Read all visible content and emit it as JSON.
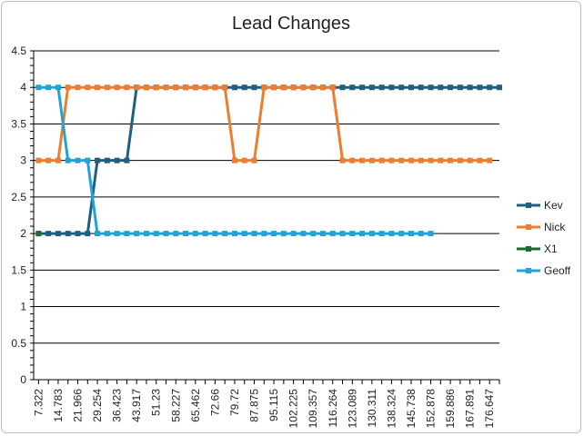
{
  "chart_data": {
    "type": "line",
    "title": "Lead Changes",
    "xlabel": "",
    "ylabel": "",
    "ylim": [
      0,
      4.5
    ],
    "yticks": [
      "0",
      "0.5",
      "1",
      "1.5",
      "2",
      "2.5",
      "3",
      "3.5",
      "4",
      "4.5"
    ],
    "grid": "horizontal",
    "legend_position": "right",
    "x_tick_labels": [
      "7.322",
      "14.783",
      "21.966",
      "29.254",
      "36.423",
      "43.917",
      "51.23",
      "58.227",
      "65.462",
      "72.66",
      "79.72",
      "87.875",
      "95.115",
      "102.225",
      "109.357",
      "116.264",
      "123.089",
      "130.311",
      "138.324",
      "145.738",
      "152.878",
      "159.886",
      "167.891",
      "176.647"
    ],
    "num_points": 48,
    "series": [
      {
        "name": "Kev",
        "color": "#1f5f7f",
        "values": [
          2,
          2,
          2,
          2,
          2,
          2,
          3,
          3,
          3,
          3,
          4,
          4,
          4,
          4,
          4,
          4,
          4,
          4,
          4,
          4,
          4,
          4,
          4,
          4,
          4,
          4,
          4,
          4,
          4,
          4,
          4,
          4,
          4,
          4,
          4,
          4,
          4,
          4,
          4,
          4,
          4,
          4,
          4,
          4,
          4,
          4,
          4,
          4
        ]
      },
      {
        "name": "Nick",
        "color": "#ed7d31",
        "values": [
          3,
          3,
          3,
          4,
          4,
          4,
          4,
          4,
          4,
          4,
          4,
          4,
          4,
          4,
          4,
          4,
          4,
          4,
          4,
          4,
          3,
          3,
          3,
          4,
          4,
          4,
          4,
          4,
          4,
          4,
          4,
          3,
          3,
          3,
          3,
          3,
          3,
          3,
          3,
          3,
          3,
          3,
          3,
          3,
          3,
          3,
          3,
          null
        ]
      },
      {
        "name": "X1",
        "color": "#1e6b2e",
        "values": [
          2,
          null,
          null,
          null,
          null,
          null,
          null,
          null,
          null,
          null,
          null,
          null,
          null,
          null,
          null,
          null,
          null,
          null,
          null,
          null,
          null,
          null,
          null,
          null,
          null,
          null,
          null,
          null,
          null,
          null,
          null,
          null,
          null,
          null,
          null,
          null,
          null,
          null,
          null,
          null,
          null,
          null,
          null,
          null,
          null,
          null,
          null,
          null
        ]
      },
      {
        "name": "Geoff",
        "color": "#21a3d6",
        "values": [
          4,
          4,
          4,
          3,
          3,
          3,
          2,
          2,
          2,
          2,
          2,
          2,
          2,
          2,
          2,
          2,
          2,
          2,
          2,
          2,
          2,
          2,
          2,
          2,
          2,
          2,
          2,
          2,
          2,
          2,
          2,
          2,
          2,
          2,
          2,
          2,
          2,
          2,
          2,
          2,
          2,
          null,
          null,
          null,
          null,
          null,
          null,
          null
        ]
      }
    ]
  }
}
